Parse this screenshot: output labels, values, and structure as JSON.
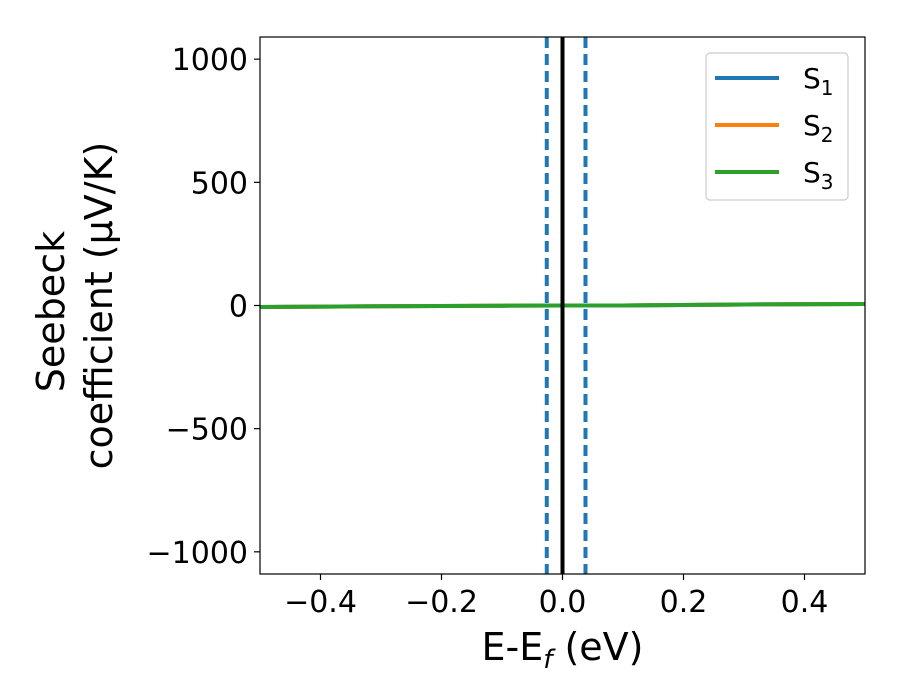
{
  "chart_data": {
    "type": "line",
    "xlabel": "E-E_f (eV)",
    "ylabel_lines": [
      "Seebeck",
      "coefficient  (μV/K)"
    ],
    "xlim": [
      -0.5,
      0.5
    ],
    "ylim": [
      -1090,
      1090
    ],
    "xticks": [
      -0.4,
      -0.2,
      0.0,
      0.2,
      0.4
    ],
    "xtick_labels": [
      "−0.4",
      "−0.2",
      "0.0",
      "0.2",
      "0.4"
    ],
    "yticks": [
      1000,
      500,
      0,
      -500,
      -1000
    ],
    "ytick_labels": [
      "1000",
      "500",
      "0",
      "−500",
      "−1000"
    ],
    "grid": false,
    "legend_position": "top-right",
    "series": [
      {
        "name": "S1",
        "label_main": "S",
        "label_sub": "1",
        "color": "#1f77b4",
        "x": [
          -0.5,
          -0.3,
          -0.1,
          0.0,
          0.1,
          0.3,
          0.5
        ],
        "y": [
          -6,
          -3,
          -1,
          0,
          0,
          4,
          6
        ]
      },
      {
        "name": "S2",
        "label_main": "S",
        "label_sub": "2",
        "color": "#ff7f0e",
        "x": [
          -0.5,
          -0.3,
          -0.1,
          0.0,
          0.1,
          0.3,
          0.5
        ],
        "y": [
          -6,
          -3,
          -1,
          0,
          0,
          4,
          6
        ]
      },
      {
        "name": "S3",
        "label_main": "S",
        "label_sub": "3",
        "color": "#2ca02c",
        "x": [
          -0.5,
          -0.3,
          -0.1,
          0.0,
          0.1,
          0.3,
          0.5
        ],
        "y": [
          -6,
          -3,
          -1,
          0,
          0,
          4,
          6
        ]
      }
    ],
    "vertical_lines": [
      {
        "x": 0.0,
        "style": "solid",
        "color": "#000000"
      },
      {
        "x": -0.026,
        "style": "dashed",
        "color": "#1f77b4"
      },
      {
        "x": 0.038,
        "style": "dashed",
        "color": "#1f77b4"
      }
    ]
  }
}
